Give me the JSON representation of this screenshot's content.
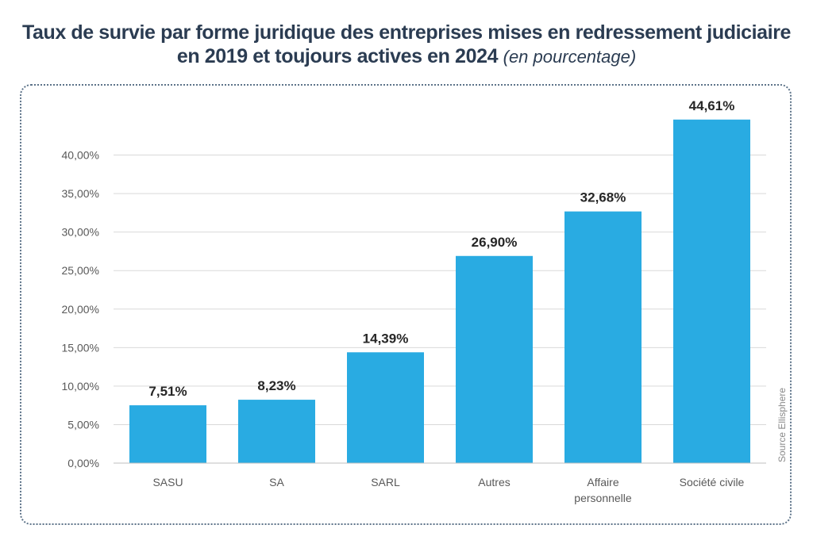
{
  "title": {
    "line1": "Taux de survie par forme juridique des entreprises mises en redressement judiciaire",
    "line2": "en 2019 et toujours actives en 2024",
    "unit_note": "(en pourcentage)"
  },
  "source": "Source Ellisphere",
  "colors": {
    "bar": "#29abe2",
    "grid": "#d9d9d9",
    "axis": "#bfbfbf",
    "text": "#595959",
    "label": "#262626",
    "title": "#2b3c52"
  },
  "chart_data": {
    "type": "bar",
    "categories": [
      [
        "SASU"
      ],
      [
        "SA"
      ],
      [
        "SARL"
      ],
      [
        "Autres"
      ],
      [
        "Affaire",
        "personnelle"
      ],
      [
        "Société civile"
      ]
    ],
    "values": [
      7.51,
      8.23,
      14.39,
      26.9,
      32.68,
      44.61
    ],
    "value_labels": [
      "7,51%",
      "8,23%",
      "14,39%",
      "26,90%",
      "32,68%",
      "44,61%"
    ],
    "yticks": [
      0,
      5,
      10,
      15,
      20,
      25,
      30,
      35,
      40
    ],
    "ytick_labels": [
      "0,00%",
      "5,00%",
      "10,00%",
      "15,00%",
      "20,00%",
      "25,00%",
      "30,00%",
      "35,00%",
      "40,00%"
    ],
    "ylim": [
      0,
      45
    ],
    "grid": true,
    "xlabel": "",
    "ylabel": ""
  }
}
